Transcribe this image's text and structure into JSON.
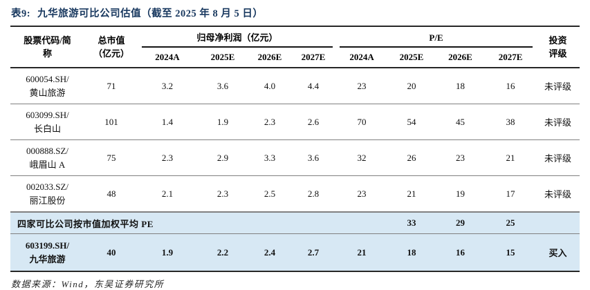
{
  "header": {
    "tag": "表9:",
    "title": "九华旅游可比公司估值（截至 2025 年 8 月 5 日）"
  },
  "columns": {
    "stock_l1": "股票代码/简",
    "stock_l2": "称",
    "mcap_l1": "总市值",
    "mcap_l2": "（亿元）",
    "profit_group": "归母净利润（亿元）",
    "pe_group": "P/E",
    "years": [
      "2024A",
      "2025E",
      "2026E",
      "2027E"
    ],
    "rating_l1": "投资",
    "rating_l2": "评级"
  },
  "rows": [
    {
      "code": "600054.SH/",
      "name": "黄山旅游",
      "mcap": "71",
      "profit": [
        "3.2",
        "3.6",
        "4.0",
        "4.4"
      ],
      "pe": [
        "23",
        "20",
        "18",
        "16"
      ],
      "rating": "未评级"
    },
    {
      "code": "603099.SH/",
      "name": "长白山",
      "mcap": "101",
      "profit": [
        "1.4",
        "1.9",
        "2.3",
        "2.6"
      ],
      "pe": [
        "70",
        "54",
        "45",
        "38"
      ],
      "rating": "未评级"
    },
    {
      "code": "000888.SZ/",
      "name": "峨眉山 A",
      "mcap": "75",
      "profit": [
        "2.3",
        "2.9",
        "3.3",
        "3.6"
      ],
      "pe": [
        "32",
        "26",
        "23",
        "21"
      ],
      "rating": "未评级"
    },
    {
      "code": "002033.SZ/",
      "name": "丽江股份",
      "mcap": "48",
      "profit": [
        "2.1",
        "2.3",
        "2.5",
        "2.8"
      ],
      "pe": [
        "23",
        "21",
        "19",
        "17"
      ],
      "rating": "未评级"
    }
  ],
  "avg_row": {
    "label": "四家可比公司按市值加权平均 PE",
    "pe_2024a": "",
    "pe_2025e": "33",
    "pe_2026e": "29",
    "pe_2027e": "25",
    "rating": ""
  },
  "target_row": {
    "code": "603199.SH/",
    "name": "九华旅游",
    "mcap": "40",
    "profit": [
      "1.9",
      "2.2",
      "2.4",
      "2.7"
    ],
    "pe": [
      "21",
      "18",
      "16",
      "15"
    ],
    "rating": "买入"
  },
  "footer": {
    "source": "数据来源：Wind，东吴证券研究所"
  },
  "colors": {
    "title_navy": "#17375E",
    "highlight_blue": "#D7E8F4",
    "border_dark": "#262626",
    "border_gray": "#7f7f7f"
  }
}
